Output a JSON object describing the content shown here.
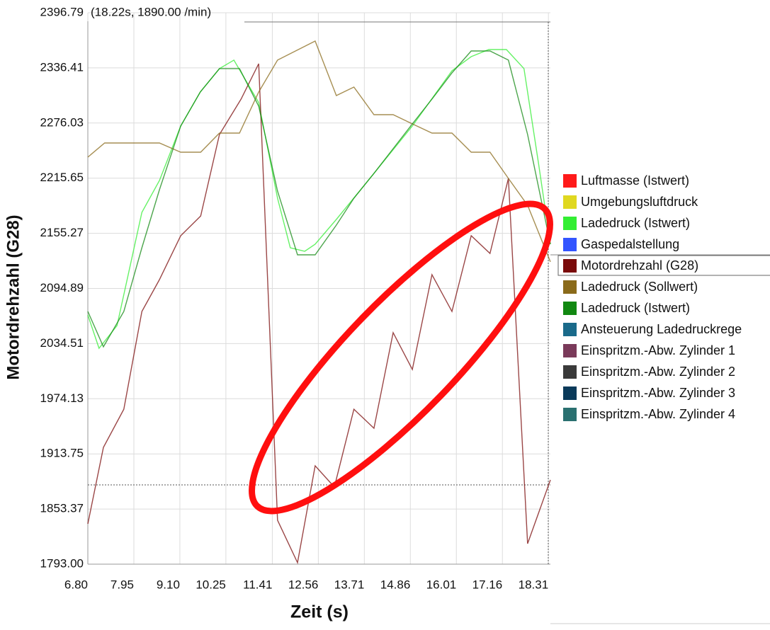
{
  "chart_data": {
    "type": "line",
    "header": "(18.22s, 1890.00 /min)",
    "xlabel": "Zeit (s)",
    "ylabel": "Motordrehzahl (G28)",
    "xlim": [
      6.8,
      18.36
    ],
    "ylim": [
      1793.0,
      2396.79
    ],
    "xticks": [
      {
        "value": 6.8,
        "label": "6.80"
      },
      7.95,
      {
        "value": 9.1,
        "label": "9.10"
      },
      10.25,
      11.41,
      12.56,
      13.71,
      14.86,
      16.01,
      17.16,
      18.31
    ],
    "yticks": [
      {
        "value": 1793.0,
        "label": "1793.00"
      },
      1853.37,
      1913.75,
      1974.13,
      2034.51,
      2094.89,
      2155.27,
      2215.65,
      2276.03,
      2336.41,
      2396.79
    ],
    "grid": true,
    "legend_selected": 4,
    "series": [
      {
        "name": "Luftmasse (Istwert)",
        "color": "#ff1a1a"
      },
      {
        "name": "Umgebungsluftdruck",
        "color": "#e0d820"
      },
      {
        "name": "Ladedruck (Istwert)",
        "color": "#33ee33",
        "x": [
          6.8,
          7.08,
          7.53,
          8.15,
          8.59,
          9.12,
          9.61,
          10.09,
          10.45,
          11.07,
          11.54,
          11.86,
          12.22,
          12.48,
          13.01,
          13.95,
          14.91,
          15.9,
          16.38,
          16.82,
          17.26,
          17.7,
          18.06,
          18.36
        ],
        "values": [
          2065.8,
          2029.4,
          2054.2,
          2178.2,
          2213.1,
          2272.8,
          2310.0,
          2335.6,
          2344.9,
          2298.4,
          2193.7,
          2139.5,
          2135.6,
          2143.3,
          2170.5,
          2220.9,
          2272.8,
          2333.2,
          2348.7,
          2356.5,
          2356.5,
          2335.6,
          2232.5,
          2143.3
        ]
      },
      {
        "name": "Gaspedalstellung",
        "color": "#3355ff"
      },
      {
        "name": "Motordrehzahl (G28)",
        "color": "#7a0a0a",
        "x": [
          6.8,
          7.19,
          7.7,
          8.15,
          8.59,
          9.12,
          9.62,
          10.09,
          10.63,
          11.07,
          11.54,
          12.04,
          12.48,
          12.96,
          13.45,
          13.95,
          14.43,
          14.91,
          15.4,
          15.9,
          16.38,
          16.85,
          17.31,
          17.79,
          18.36
        ],
        "values": [
          1837.2,
          1920.9,
          1962.7,
          2069.7,
          2104.6,
          2152.6,
          2174.3,
          2263.5,
          2302.2,
          2341.0,
          1841.1,
          1794.6,
          1900.7,
          1877.5,
          1962.7,
          1941.8,
          2046.5,
          2006.2,
          2110.0,
          2069.7,
          2152.6,
          2133.3,
          2215.4,
          1815.5,
          1885.2
        ]
      },
      {
        "name": "Ladedruck (Sollwert)",
        "color": "#8a6a1a",
        "x": [
          6.8,
          7.22,
          8.59,
          9.12,
          9.62,
          10.09,
          10.59,
          11.07,
          11.54,
          12.48,
          13.01,
          13.45,
          13.95,
          14.43,
          14.91,
          15.4,
          15.9,
          16.38,
          16.85,
          17.31,
          17.79,
          18.36
        ],
        "values": [
          2238.7,
          2254.2,
          2254.2,
          2244.1,
          2244.1,
          2265.0,
          2265.0,
          2310.0,
          2344.9,
          2365.8,
          2306.1,
          2315.4,
          2285.2,
          2285.2,
          2275.1,
          2265.0,
          2265.0,
          2244.1,
          2244.1,
          2215.4,
          2186.0,
          2124.0
        ]
      },
      {
        "name": "Ladedruck (Istwert)",
        "color": "#118811",
        "x": [
          6.8,
          7.19,
          7.7,
          8.15,
          8.59,
          9.12,
          9.61,
          10.09,
          10.59,
          11.07,
          11.54,
          12.04,
          12.48,
          13.01,
          13.45,
          13.95,
          14.43,
          14.91,
          15.4,
          15.9,
          16.38,
          16.85,
          17.31,
          17.79,
          18.36
        ],
        "values": [
          2069.7,
          2031.0,
          2069.7,
          2139.5,
          2203.0,
          2272.8,
          2310.0,
          2335.6,
          2335.6,
          2294.5,
          2201.5,
          2131.7,
          2131.7,
          2164.3,
          2193.7,
          2220.9,
          2248.0,
          2275.1,
          2302.2,
          2330.9,
          2354.9,
          2354.9,
          2344.9,
          2263.5,
          2143.3
        ]
      },
      {
        "name": "Ansteuerung Ladedruckrege",
        "color": "#1a6a8a"
      },
      {
        "name": "Einspritzm.-Abw. Zylinder 1",
        "color": "#7a3a5a"
      },
      {
        "name": "Einspritzm.-Abw. Zylinder 2",
        "color": "#3a3a3a"
      },
      {
        "name": "Einspritzm.-Abw. Zylinder 3",
        "color": "#0a3a5a"
      },
      {
        "name": "Einspritzm.-Abw. Zylinder 4",
        "color": "#2a7070"
      }
    ]
  }
}
